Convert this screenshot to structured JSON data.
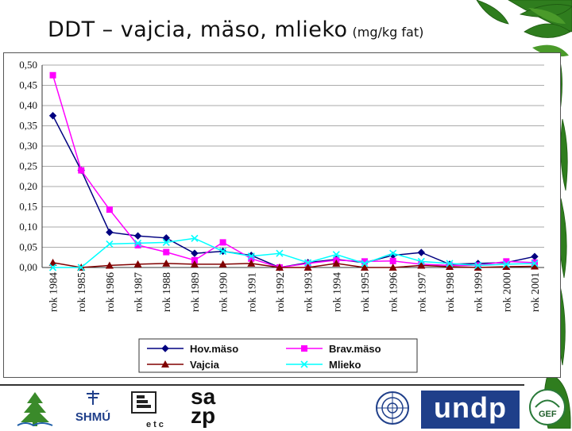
{
  "slide": {
    "title": "DDT – vajcia, mäso, mlieko",
    "title_unit": "(mg/kg fat)"
  },
  "chart_data": {
    "type": "line",
    "categories": [
      "rok 1984",
      "rok 1985",
      "rok 1986",
      "rok 1987",
      "rok 1988",
      "rok 1989",
      "rok 1990",
      "rok 1991",
      "rok 1992",
      "rok 1993",
      "rok 1994",
      "rok 1995",
      "rok 1996",
      "rok 1997",
      "rok 1998",
      "rok 1999",
      "rok 2000",
      "rok 2001"
    ],
    "ylim": [
      0,
      0.5
    ],
    "yticks": [
      "0,00",
      "0,05",
      "0,10",
      "0,15",
      "0,20",
      "0,25",
      "0,30",
      "0,35",
      "0,40",
      "0,45",
      "0,50"
    ],
    "grid": true,
    "legend_position": "bottom",
    "series": [
      {
        "name": "Hov.mäso",
        "color": "#000080",
        "marker": "diamond",
        "values": [
          0.375,
          0.24,
          0.087,
          0.078,
          0.073,
          0.035,
          0.04,
          0.03,
          0.0,
          0.012,
          0.02,
          0.012,
          0.03,
          0.037,
          0.008,
          0.01,
          0.012,
          0.027
        ]
      },
      {
        "name": "Brav.mäso",
        "color": "#ff00ff",
        "marker": "square",
        "values": [
          0.475,
          0.24,
          0.143,
          0.055,
          0.038,
          0.018,
          0.062,
          0.022,
          0.0,
          0.01,
          0.018,
          0.015,
          0.016,
          0.008,
          0.005,
          0.005,
          0.015,
          0.012
        ]
      },
      {
        "name": "Vajcia",
        "color": "#800000",
        "marker": "triangle",
        "values": [
          0.012,
          0.0,
          0.005,
          0.008,
          0.01,
          0.008,
          0.008,
          0.01,
          0.0,
          0.0,
          0.01,
          0.0,
          0.0,
          0.005,
          0.002,
          0.0,
          0.002,
          0.003
        ]
      },
      {
        "name": "Mlieko",
        "color": "#00ffff",
        "marker": "x",
        "values": [
          0.0,
          0.0,
          0.058,
          0.06,
          0.062,
          0.072,
          0.04,
          0.028,
          0.035,
          0.012,
          0.032,
          0.01,
          0.035,
          0.015,
          0.01,
          0.005,
          0.008,
          0.01
        ]
      }
    ]
  },
  "footer_logos": [
    {
      "name": "tree-logo"
    },
    {
      "name": "shmu-logo",
      "text": "SHMÚ"
    },
    {
      "name": "etc-logo",
      "text": "etc"
    },
    {
      "name": "sazp-logo",
      "text_top": "sa",
      "text_bottom": "zp"
    },
    {
      "name": "un-emblem"
    },
    {
      "name": "undp-logo",
      "text": "undp"
    },
    {
      "name": "gef-logo",
      "text": "GEF"
    }
  ]
}
